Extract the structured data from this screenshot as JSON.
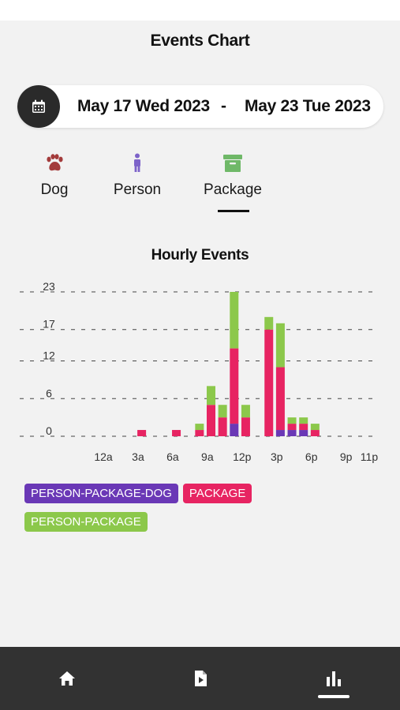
{
  "header": {
    "title": "Events Chart"
  },
  "date_range": {
    "start": "May 17 Wed 2023",
    "separator": "-",
    "end": "May 23 Tue 2023",
    "icon": "calendar-icon"
  },
  "tabs": [
    {
      "label": "Dog",
      "icon": "paw-icon",
      "color": "#a33b3b",
      "selected": false
    },
    {
      "label": "Person",
      "icon": "person-icon",
      "color": "#7d63c9",
      "selected": false
    },
    {
      "label": "Package",
      "icon": "package-box-icon",
      "color": "#6fb868",
      "selected": true
    }
  ],
  "chart_data": {
    "type": "bar",
    "stacked": true,
    "title": "Hourly Events",
    "yticks": [
      0,
      6,
      12,
      17,
      23
    ],
    "ylim": [
      0,
      23
    ],
    "grid": true,
    "xtick_labels": [
      "12a",
      "3a",
      "6a",
      "9a",
      "12p",
      "3p",
      "6p",
      "9p",
      "11p"
    ],
    "xtick_hours": [
      0,
      3,
      6,
      9,
      12,
      15,
      18,
      21,
      23
    ],
    "categories": [
      "12a",
      "1a",
      "2a",
      "3a",
      "4a",
      "5a",
      "6a",
      "7a",
      "8a",
      "9a",
      "10a",
      "11a",
      "12p",
      "1p",
      "2p",
      "3p",
      "4p",
      "5p",
      "6p",
      "7p",
      "8p",
      "9p",
      "10p",
      "11p"
    ],
    "series": [
      {
        "name": "PERSON-PACKAGE-DOG",
        "color": "#6a38b6",
        "values": [
          0,
          0,
          0,
          0,
          0,
          0,
          0,
          0,
          0,
          0,
          0,
          0,
          2,
          0,
          0,
          0,
          1,
          1,
          1,
          0,
          0,
          0,
          0,
          0
        ]
      },
      {
        "name": "PACKAGE",
        "color": "#e72462",
        "values": [
          0,
          0,
          0,
          0,
          1,
          0,
          0,
          1,
          0,
          1,
          5,
          3,
          12,
          3,
          0,
          17,
          10,
          1,
          1,
          1,
          0,
          0,
          0,
          0
        ]
      },
      {
        "name": "PERSON-PACKAGE",
        "color": "#8cc84b",
        "values": [
          0,
          0,
          0,
          0,
          0,
          0,
          0,
          0,
          0,
          1,
          3,
          2,
          9,
          2,
          0,
          2,
          7,
          1,
          1,
          1,
          0,
          0,
          0,
          0
        ]
      }
    ],
    "legend_position": "bottom-left"
  },
  "bottom_nav": [
    {
      "icon": "home-icon",
      "selected": false
    },
    {
      "icon": "document-play-icon",
      "selected": false
    },
    {
      "icon": "bar-chart-icon",
      "selected": true
    }
  ]
}
